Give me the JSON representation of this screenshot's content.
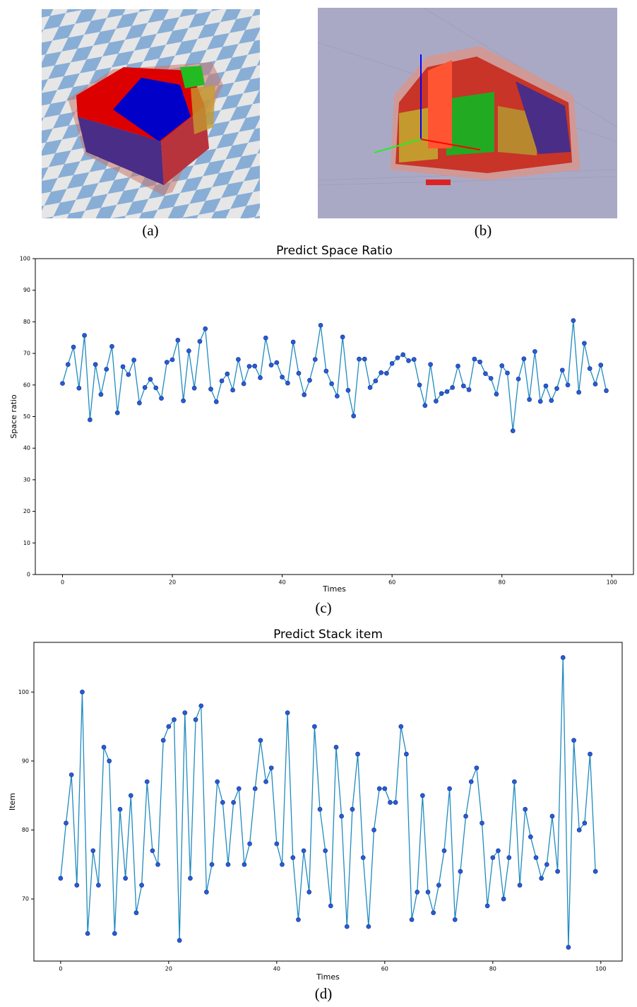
{
  "captions": [
    "(a)",
    "(b)",
    "(c)",
    "(d)"
  ],
  "chart_data": [
    {
      "type": "line",
      "title": "Predict Space Ratio",
      "x_label": "Times",
      "y_label": "Space ratio",
      "x": [
        0,
        1,
        2,
        3,
        4,
        5,
        6,
        7,
        8,
        9,
        10,
        11,
        12,
        13,
        14,
        15,
        16,
        17,
        18,
        19,
        20,
        21,
        22,
        23,
        24,
        25,
        26,
        27,
        28,
        29,
        30,
        31,
        32,
        33,
        34,
        35,
        36,
        37,
        38,
        39,
        40,
        41,
        42,
        43,
        44,
        45,
        46,
        47,
        48,
        49,
        50,
        51,
        52,
        53,
        54,
        55,
        56,
        57,
        58,
        59,
        60,
        61,
        62,
        63,
        64,
        65,
        66,
        67,
        68,
        69,
        70,
        71,
        72,
        73,
        74,
        75,
        76,
        77,
        78,
        79,
        80,
        81,
        82,
        83,
        84,
        85,
        86,
        87,
        88,
        89,
        90,
        91,
        92,
        93,
        94,
        95,
        96,
        97,
        98,
        99
      ],
      "series": [
        {
          "color": "#1f8bbf",
          "marker_color": "#2a5ad9",
          "values": [
            60.5,
            66.5,
            72,
            59,
            75.7,
            49,
            66.5,
            57,
            65,
            72.2,
            51.2,
            65.8,
            63.3,
            67.9,
            54.3,
            59.2,
            61.8,
            59.1,
            55.8,
            67.2,
            68,
            74.2,
            55,
            70.8,
            59,
            73.8,
            77.8,
            58.7,
            54.7,
            61.3,
            63.5,
            58.4,
            68.1,
            60.4,
            65.9,
            66,
            62.3,
            74.9,
            66.3,
            67.1,
            62.5,
            60.6,
            73.6,
            63.7,
            56.9,
            61.5,
            68.1,
            78.9,
            64.4,
            60.4,
            56.5,
            75.2,
            58.3,
            50.2,
            68.2,
            68.2,
            59.2,
            61.3,
            63.9,
            63.7,
            66.8,
            68.6,
            69.6,
            67.7,
            68.1,
            60,
            53.5,
            66.5,
            54.9,
            57.3,
            57.9,
            59.2,
            66,
            59.7,
            58.5,
            68.2,
            67.3,
            63.6,
            62.1,
            57.1,
            66.1,
            63.8,
            45.5,
            61.9,
            68.3,
            55.4,
            70.6,
            54.8,
            59.7,
            55.1,
            58.9,
            64.7,
            60,
            80.4,
            57.7,
            73.2,
            65.2,
            60.3,
            66.3,
            58.2
          ]
        }
      ],
      "xlim": [
        -4.95,
        103.95
      ],
      "xticks": [
        0,
        20,
        40,
        60,
        80,
        100
      ],
      "ylim": [
        0,
        100
      ],
      "yticks": [
        0,
        10,
        20,
        30,
        40,
        50,
        60,
        70,
        80,
        90,
        100
      ],
      "grid": false
    },
    {
      "type": "line",
      "title": "Predict Stack item",
      "x_label": "Times",
      "y_label": "Item",
      "x": [
        0,
        1,
        2,
        3,
        4,
        5,
        6,
        7,
        8,
        9,
        10,
        11,
        12,
        13,
        14,
        15,
        16,
        17,
        18,
        19,
        20,
        21,
        22,
        23,
        24,
        25,
        26,
        27,
        28,
        29,
        30,
        31,
        32,
        33,
        34,
        35,
        36,
        37,
        38,
        39,
        40,
        41,
        42,
        43,
        44,
        45,
        46,
        47,
        48,
        49,
        50,
        51,
        52,
        53,
        54,
        55,
        56,
        57,
        58,
        59,
        60,
        61,
        62,
        63,
        64,
        65,
        66,
        67,
        68,
        69,
        70,
        71,
        72,
        73,
        74,
        75,
        76,
        77,
        78,
        79,
        80,
        81,
        82,
        83,
        84,
        85,
        86,
        87,
        88,
        89,
        90,
        91,
        92,
        93,
        94,
        95,
        96,
        97,
        98,
        99
      ],
      "series": [
        {
          "color": "#1f8bbf",
          "marker_color": "#2a5ad9",
          "values": [
            73,
            81,
            88,
            72,
            100,
            65,
            77,
            72,
            92,
            90,
            65,
            83,
            73,
            85,
            68,
            72,
            87,
            77,
            75,
            93,
            95,
            96,
            64,
            97,
            73,
            96,
            98,
            71,
            75,
            87,
            84,
            75,
            84,
            86,
            75,
            78,
            86,
            93,
            87,
            89,
            78,
            75,
            97,
            76,
            67,
            77,
            71,
            95,
            83,
            77,
            69,
            92,
            82,
            66,
            83,
            91,
            76,
            66,
            80,
            86,
            86,
            84,
            84,
            95,
            91,
            67,
            71,
            85,
            71,
            68,
            72,
            77,
            86,
            67,
            74,
            82,
            87,
            89,
            81,
            69,
            76,
            77,
            70,
            76,
            87,
            72,
            83,
            79,
            76,
            73,
            75,
            82,
            74,
            105,
            63,
            93,
            80,
            81,
            91,
            74
          ]
        }
      ],
      "xlim": [
        -4.95,
        103.95
      ],
      "xticks": [
        0,
        20,
        40,
        60,
        80,
        100
      ],
      "ylim": [
        61,
        107.2
      ],
      "yticks": [
        70,
        80,
        90,
        100
      ],
      "grid": false
    }
  ]
}
